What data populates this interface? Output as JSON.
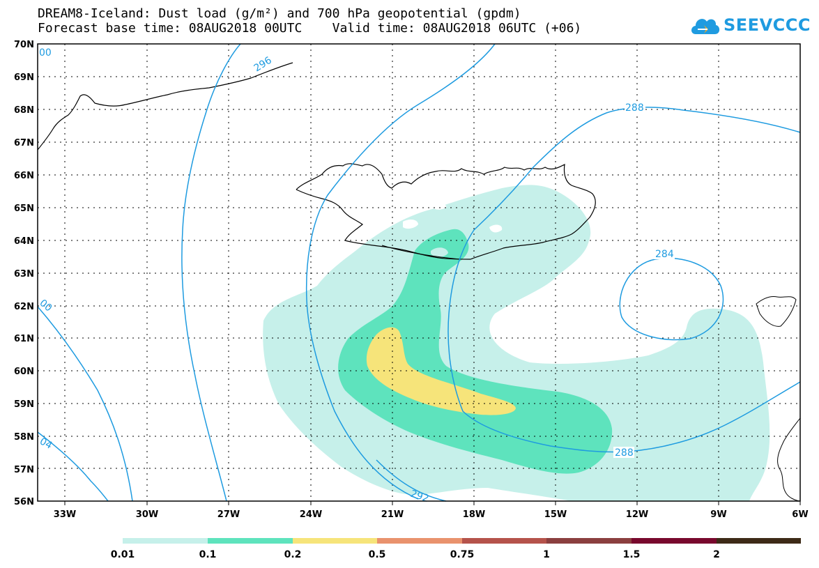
{
  "header": {
    "title_line1": "DREAM8-Iceland: Dust load (g/m²) and 700 hPa geopotential (gpdm)",
    "title_line2": "Forecast base time: 08AUG2018 00UTC    Valid time: 08AUG2018 06UTC (+06)"
  },
  "logo": {
    "text": "SEEVCCC",
    "icon": "cloud-logo-icon",
    "color": "#1f9be0"
  },
  "map": {
    "latitude_labels": [
      "70N",
      "69N",
      "68N",
      "67N",
      "66N",
      "65N",
      "64N",
      "63N",
      "62N",
      "61N",
      "60N",
      "59N",
      "58N",
      "57N",
      "56N"
    ],
    "longitude_labels": [
      "33W",
      "30W",
      "27W",
      "24W",
      "21W",
      "18W",
      "15W",
      "12W",
      "9W",
      "6W"
    ],
    "contour_color": "#1e9be0",
    "contour_labels": [
      "296",
      "288",
      "284",
      "288",
      "292",
      "00",
      "00",
      "04"
    ]
  },
  "colorbar": {
    "colors": [
      "#c6f0ea",
      "#5ee3bd",
      "#f6e47a",
      "#e9926d",
      "#b5534b",
      "#8b3f3f",
      "#78082d",
      "#3d2a17",
      "#9a6fa3"
    ],
    "labels": [
      "0.01",
      "0.1",
      "0.2",
      "0.5",
      "0.75",
      "1",
      "1.5",
      "2"
    ]
  }
}
